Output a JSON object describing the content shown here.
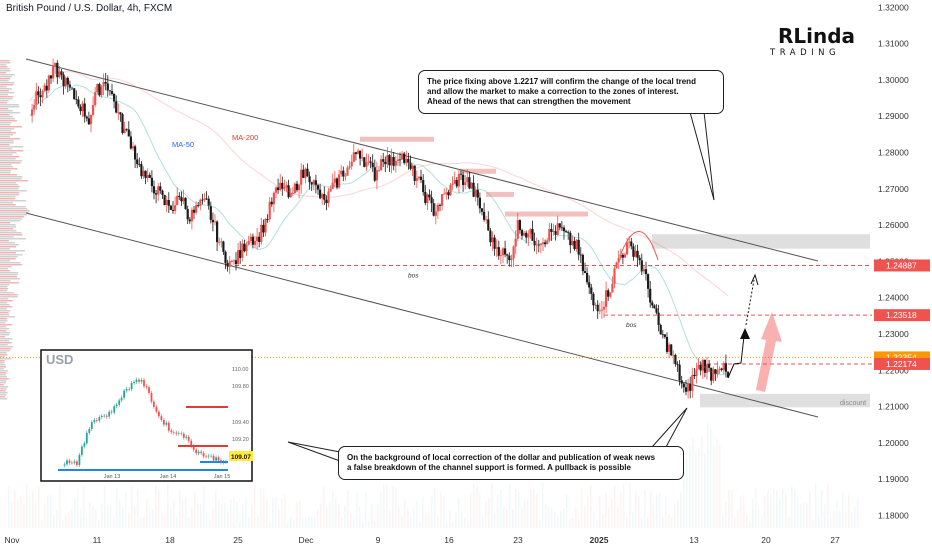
{
  "chart_title": "British Pound / U.S. Dollar, 4h, FXCM",
  "logo": {
    "main": "RLinda",
    "sub": "TRADING"
  },
  "chart_data": [
    {
      "type": "line",
      "description": "GBPUSD 4h candlestick chart with descending channel",
      "x_ticks": [
        "Nov",
        "11",
        "18",
        "25",
        "Dec",
        "9",
        "16",
        "23",
        "2025",
        "13",
        "20",
        "27"
      ],
      "y_ticks": [
        "1.32000",
        "1.31000",
        "1.30000",
        "1.29000",
        "1.28000",
        "1.27000",
        "1.26000",
        "1.25000",
        "1.24000",
        "1.23000",
        "1.22000",
        "1.21000",
        "1.20000",
        "1.19000",
        "1.18000"
      ],
      "ylim": [
        1.176,
        1.322
      ],
      "series": [
        {
          "name": "MA-50",
          "color": "#2962ff"
        },
        {
          "name": "MA-200",
          "color": "#e53935"
        }
      ],
      "price_labels": [
        {
          "value": 1.24887,
          "text": "1.24887",
          "color": "#ef5350"
        },
        {
          "value": 1.23518,
          "text": "1.23518",
          "color": "#ef5350"
        },
        {
          "value": 1.22354,
          "text": "1.22354",
          "color": "#ff9800"
        },
        {
          "value": 1.22174,
          "text": "1.22174",
          "color": "#ef5350"
        }
      ],
      "annotations": [
        "bos",
        "bos",
        "discount"
      ],
      "path": [
        1.292,
        1.296,
        1.298,
        1.303,
        1.3,
        1.296,
        1.293,
        1.289,
        1.297,
        1.3,
        1.294,
        1.287,
        1.283,
        1.276,
        1.272,
        1.27,
        1.266,
        1.265,
        1.268,
        1.262,
        1.265,
        1.266,
        1.259,
        1.252,
        1.249,
        1.252,
        1.257,
        1.256,
        1.261,
        1.268,
        1.271,
        1.267,
        1.273,
        1.275,
        1.27,
        1.266,
        1.27,
        1.274,
        1.276,
        1.281,
        1.277,
        1.274,
        1.279,
        1.277,
        1.28,
        1.276,
        1.273,
        1.268,
        1.264,
        1.267,
        1.27,
        1.273,
        1.272,
        1.268,
        1.262,
        1.255,
        1.253,
        1.25,
        1.26,
        1.258,
        1.256,
        1.256,
        1.258,
        1.259,
        1.256,
        1.254,
        1.246,
        1.238,
        1.238,
        1.243,
        1.251,
        1.254,
        1.253,
        1.247,
        1.238,
        1.23,
        1.226,
        1.22,
        1.213,
        1.219,
        1.222,
        1.219,
        1.222,
        1.218
      ]
    },
    {
      "type": "line",
      "title": "USD",
      "y_ticks": [
        "110.00",
        "109.80",
        "109.40",
        "109.20"
      ],
      "x_ticks": [
        "Jan 13",
        "Jan 14",
        "Jan 15"
      ],
      "last_value_label": "109.07",
      "path": [
        109.05,
        109.08,
        109.06,
        109.3,
        109.55,
        109.6,
        109.62,
        109.7,
        109.85,
        109.95,
        110.05,
        109.98,
        109.8,
        109.6,
        109.5,
        109.4,
        109.42,
        109.3,
        109.2,
        109.15,
        109.12,
        109.1,
        109.07
      ]
    }
  ],
  "callouts": {
    "top": [
      "The price fixing above 1.2217 will confirm the change of the local trend",
      "and allow the market to make a correction to the zones of interest.",
      "Ahead of the news that can strengthen the movement"
    ],
    "bottom": [
      "On the background of local correction of the dollar and publication of weak news",
      "a false breakdown of the channel support is formed. A pullback is possible"
    ]
  }
}
